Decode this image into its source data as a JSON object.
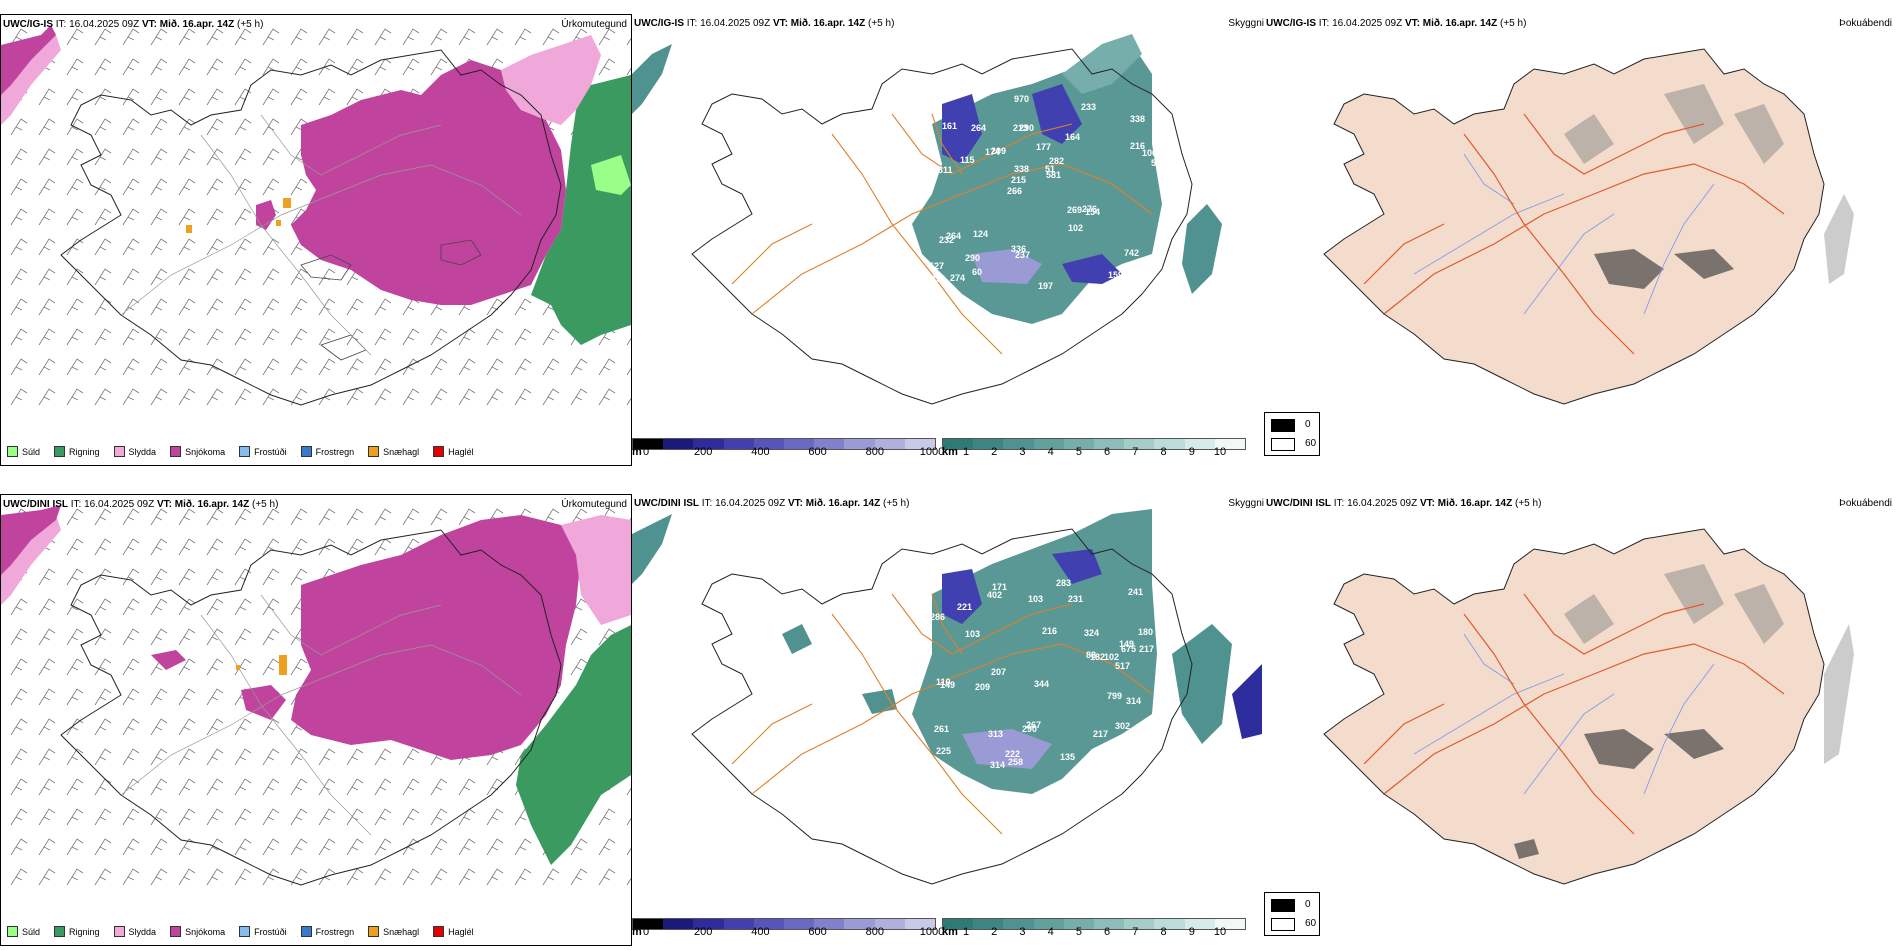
{
  "rows": [
    {
      "model": "UWC/IG-IS",
      "it_label": "IT:",
      "it_value": "16.04.2025 09Z",
      "vt_label": "VT:",
      "vt_value": "Mið. 16.apr. 14Z",
      "lead": "(+5 h)"
    },
    {
      "model": "UWC/DINI ISL",
      "it_label": "IT:",
      "it_value": "16.04.2025 09Z",
      "vt_label": "VT:",
      "vt_value": "Mið. 16.apr. 14Z",
      "lead": "(+5 h)"
    }
  ],
  "panel_titles": {
    "precip_type": "Úrkomutegund",
    "visibility": "Skyggni",
    "fog": "Þokuábendi"
  },
  "precip_legend": [
    {
      "label": "Súld",
      "color": "#99ff88"
    },
    {
      "label": "Rigning",
      "color": "#3a9a60"
    },
    {
      "label": "Slydda",
      "color": "#f0a8da"
    },
    {
      "label": "Snjókoma",
      "color": "#c0449e"
    },
    {
      "label": "Frostúði",
      "color": "#88bbee"
    },
    {
      "label": "Frostregn",
      "color": "#3a7acc"
    },
    {
      "label": "Snæhagl",
      "color": "#f0a020"
    },
    {
      "label": "Haglél",
      "color": "#e00000"
    }
  ],
  "ceiling_bar": {
    "unit": "m",
    "ticks": [
      "0",
      "200",
      "400",
      "600",
      "800",
      "1000"
    ],
    "colors": [
      "#000000",
      "#1a1a7a",
      "#2c2c9c",
      "#4040b0",
      "#5555bb",
      "#6a6ac4",
      "#8080cc",
      "#9a9ad4",
      "#b0b0dd",
      "#c8c8e8"
    ]
  },
  "visibility_bar": {
    "unit": "km",
    "ticks": [
      "1",
      "2",
      "3",
      "4",
      "5",
      "6",
      "7",
      "8",
      "9",
      "10"
    ],
    "colors": [
      "#2e7a78",
      "#3d8683",
      "#4f928f",
      "#61a09c",
      "#76aeab",
      "#8cbdba",
      "#a4cdca",
      "#bcdcda",
      "#d6ebea",
      "#f2f8f8"
    ]
  },
  "fog_legend": {
    "values": [
      "0",
      "60"
    ],
    "colors": [
      "#000000",
      "#ffffff"
    ]
  },
  "ceiling_labels_top": [
    "402",
    "311",
    "338",
    "266",
    "164",
    "274",
    "213",
    "177",
    "264",
    "209",
    "527",
    "290",
    "290",
    "282",
    "154",
    "161",
    "970",
    "523",
    "269",
    "216",
    "215",
    "336",
    "338",
    "264",
    "233",
    "124",
    "159",
    "742",
    "276",
    "197",
    "174",
    "115",
    "102",
    "60",
    "106",
    "51",
    "351",
    "237",
    "581",
    "232"
  ],
  "ceiling_labels_bottom": [
    "302",
    "180",
    "285",
    "216",
    "225",
    "171",
    "149",
    "313",
    "241",
    "103",
    "217",
    "286",
    "517",
    "258",
    "261",
    "221",
    "228",
    "402",
    "267",
    "675",
    "110",
    "149",
    "135",
    "88",
    "222",
    "290",
    "283",
    "231",
    "324",
    "227",
    "209",
    "217",
    "314",
    "344",
    "314",
    "279",
    "182",
    "103",
    "126",
    "207",
    "799",
    "102"
  ]
}
